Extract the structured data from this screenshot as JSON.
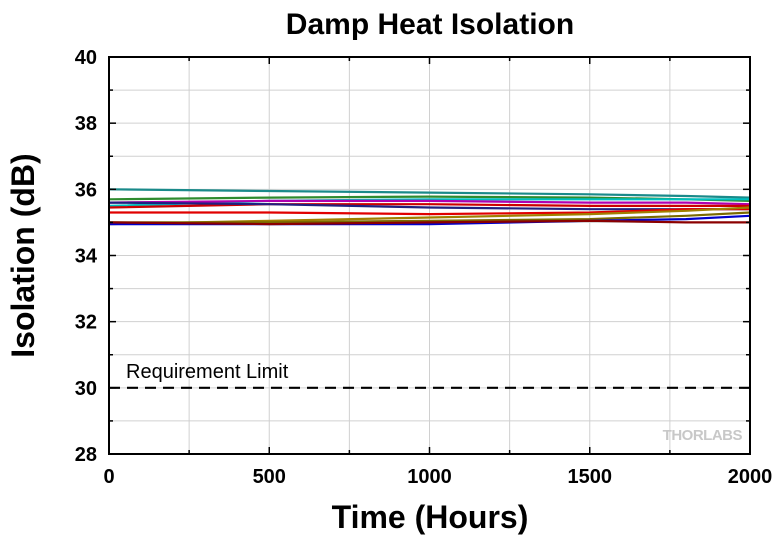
{
  "chart_data": {
    "type": "line",
    "title": "Damp Heat Isolation",
    "xlabel": "Time (Hours)",
    "ylabel": "Isolation (dB)",
    "xlim": [
      0,
      2000
    ],
    "ylim": [
      28,
      40
    ],
    "xticks": [
      0,
      500,
      1000,
      1500,
      2000
    ],
    "yticks": [
      28,
      30,
      32,
      34,
      36,
      38,
      40
    ],
    "grid": true,
    "legend": "none",
    "annotation": {
      "text": "Requirement Limit",
      "y": 30,
      "style": "dashed"
    },
    "watermark": "THORLABS",
    "series": [
      {
        "color": "#1a8a8a",
        "x": [
          0,
          500,
          1000,
          1500,
          1800,
          2000
        ],
        "y": [
          36.0,
          35.95,
          35.9,
          35.85,
          35.8,
          35.75
        ]
      },
      {
        "color": "#2e8b2e",
        "x": [
          0,
          500,
          1000,
          1500,
          1800,
          2000
        ],
        "y": [
          35.7,
          35.75,
          35.78,
          35.75,
          35.7,
          35.65
        ]
      },
      {
        "color": "#00bfbf",
        "x": [
          0,
          500,
          1000,
          1500,
          1800,
          2000
        ],
        "y": [
          35.5,
          35.65,
          35.7,
          35.7,
          35.7,
          35.7
        ]
      },
      {
        "color": "#b000b0",
        "x": [
          0,
          500,
          1000,
          1500,
          1800,
          2000
        ],
        "y": [
          35.6,
          35.65,
          35.65,
          35.6,
          35.6,
          35.55
        ]
      },
      {
        "color": "#cc0000",
        "x": [
          0,
          500,
          1000,
          1500,
          1800,
          2000
        ],
        "y": [
          35.45,
          35.55,
          35.55,
          35.5,
          35.5,
          35.5
        ]
      },
      {
        "color": "#202080",
        "x": [
          0,
          500,
          1000,
          1500,
          1800,
          2000
        ],
        "y": [
          35.6,
          35.55,
          35.45,
          35.4,
          35.4,
          35.4
        ]
      },
      {
        "color": "#e00000",
        "x": [
          0,
          500,
          1000,
          1500,
          1800,
          2000
        ],
        "y": [
          35.3,
          35.3,
          35.25,
          35.3,
          35.4,
          35.4
        ]
      },
      {
        "color": "#a08000",
        "x": [
          0,
          500,
          1000,
          1500,
          1800,
          2000
        ],
        "y": [
          34.95,
          35.05,
          35.15,
          35.25,
          35.35,
          35.45
        ]
      },
      {
        "color": "#7a6a00",
        "x": [
          0,
          500,
          1000,
          1500,
          1800,
          2000
        ],
        "y": [
          35.0,
          35.0,
          35.05,
          35.1,
          35.2,
          35.3
        ]
      },
      {
        "color": "#0000cc",
        "x": [
          0,
          500,
          1000,
          1500,
          1800,
          2000
        ],
        "y": [
          34.95,
          34.95,
          34.95,
          35.05,
          35.1,
          35.2
        ]
      },
      {
        "color": "#8b0000",
        "x": [
          0,
          500,
          1000,
          1500,
          1800,
          2000
        ],
        "y": [
          35.0,
          34.95,
          35.0,
          35.05,
          35.0,
          35.0
        ]
      }
    ]
  }
}
